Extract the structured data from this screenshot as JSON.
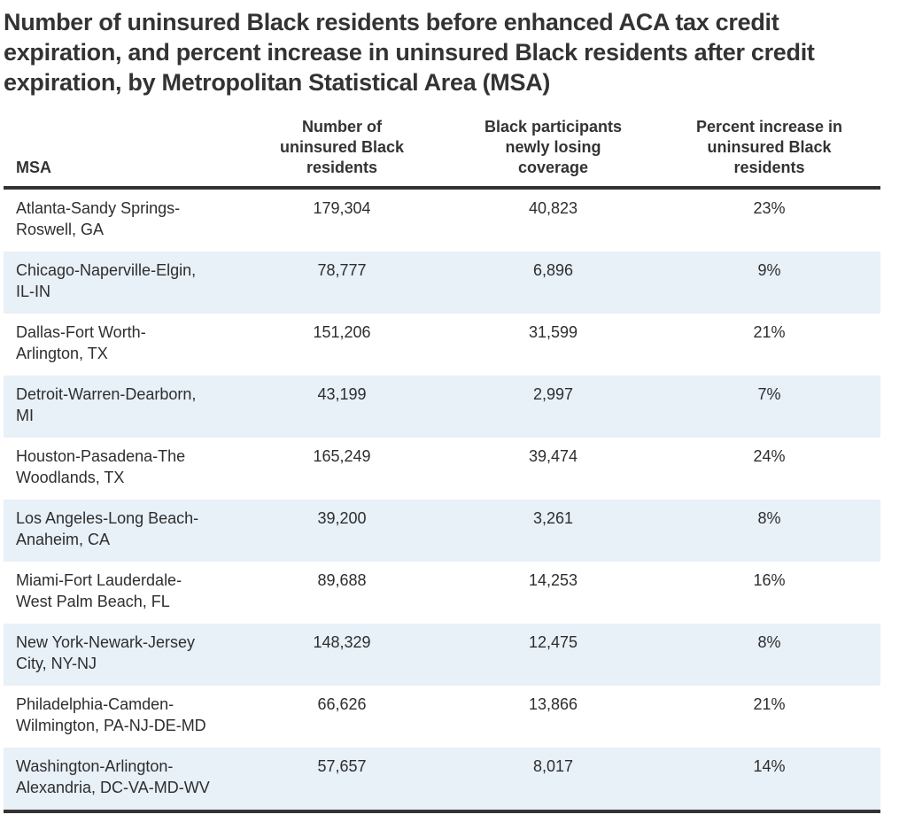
{
  "title": "Number of uninsured Black residents before enhanced ACA tax credit expiration, and percent increase in uninsured Black residents after credit expiration, by Metropolitan Statistical Area (MSA)",
  "table": {
    "headers": [
      "MSA",
      "Number of uninsured Black residents",
      "Black participants newly losing coverage",
      "Percent increase in uninsured Black residents"
    ],
    "rows": [
      {
        "msa": "Atlanta-Sandy Springs-Roswell, GA",
        "uninsured": "179,304",
        "newly_losing": "40,823",
        "pct_increase": "23%"
      },
      {
        "msa": "Chicago-Naperville-Elgin, IL-IN",
        "uninsured": "78,777",
        "newly_losing": "6,896",
        "pct_increase": "9%"
      },
      {
        "msa": "Dallas-Fort Worth-Arlington, TX",
        "uninsured": "151,206",
        "newly_losing": "31,599",
        "pct_increase": "21%"
      },
      {
        "msa": "Detroit-Warren-Dearborn, MI",
        "uninsured": "43,199",
        "newly_losing": "2,997",
        "pct_increase": "7%"
      },
      {
        "msa": "Houston-Pasadena-The Woodlands, TX",
        "uninsured": "165,249",
        "newly_losing": "39,474",
        "pct_increase": "24%"
      },
      {
        "msa": "Los Angeles-Long Beach-Anaheim, CA",
        "uninsured": "39,200",
        "newly_losing": "3,261",
        "pct_increase": "8%"
      },
      {
        "msa": "Miami-Fort Lauderdale-West Palm Beach, FL",
        "uninsured": "89,688",
        "newly_losing": "14,253",
        "pct_increase": "16%"
      },
      {
        "msa": "New York-Newark-Jersey City, NY-NJ",
        "uninsured": "148,329",
        "newly_losing": "12,475",
        "pct_increase": "8%"
      },
      {
        "msa": "Philadelphia-Camden-Wilmington, PA-NJ-DE-MD",
        "uninsured": "66,626",
        "newly_losing": "13,866",
        "pct_increase": "21%"
      },
      {
        "msa": "Washington-Arlington-Alexandria, DC-VA-MD-WV",
        "uninsured": "57,657",
        "newly_losing": "8,017",
        "pct_increase": "14%"
      }
    ]
  },
  "colors": {
    "stripe": "#e8f0f8",
    "rule": "#333333",
    "text": "#2e2e2e"
  }
}
